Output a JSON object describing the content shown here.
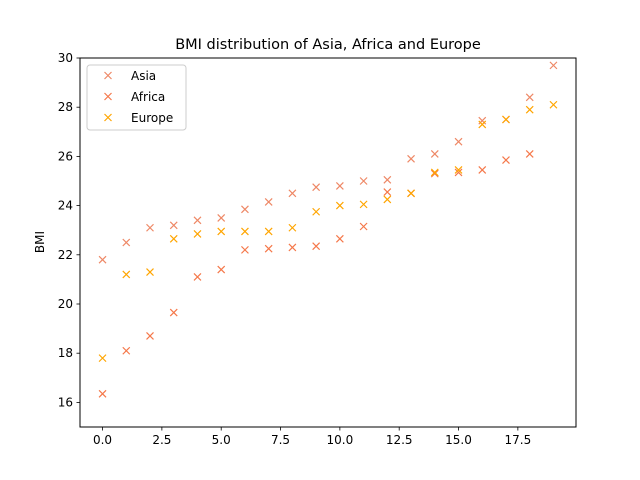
{
  "chart_data": {
    "type": "scatter",
    "title": "BMI distribution of Asia, Africa and Europe",
    "xlabel": "",
    "ylabel": "BMI",
    "xlim": [
      -0.95,
      19.95
    ],
    "ylim": [
      15,
      30
    ],
    "xticks": [
      0.0,
      2.5,
      5.0,
      7.5,
      10.0,
      12.5,
      15.0,
      17.5
    ],
    "xtick_labels": [
      "0.0",
      "2.5",
      "5.0",
      "7.5",
      "10.0",
      "12.5",
      "15.0",
      "17.5"
    ],
    "yticks": [
      16,
      18,
      20,
      22,
      24,
      26,
      28,
      30
    ],
    "ytick_labels": [
      "16",
      "18",
      "20",
      "22",
      "24",
      "26",
      "28",
      "30"
    ],
    "grid": false,
    "legend_position": "upper-left",
    "marker": "x",
    "series": [
      {
        "name": "Asia",
        "color": "#EE8866",
        "x": [
          0,
          1,
          2,
          3,
          4,
          5,
          6,
          7,
          8,
          9,
          10,
          11,
          12,
          13,
          14,
          15,
          16,
          17,
          18,
          19
        ],
        "y": [
          21.8,
          22.5,
          23.1,
          23.2,
          23.4,
          23.5,
          23.85,
          24.15,
          24.5,
          24.75,
          24.8,
          25.0,
          25.05,
          25.9,
          26.1,
          26.6,
          27.45,
          27.5,
          28.4,
          29.7
        ]
      },
      {
        "name": "Africa",
        "color": "#F5784A",
        "x": [
          0,
          1,
          2,
          3,
          4,
          5,
          6,
          7,
          8,
          9,
          10,
          11,
          12,
          13,
          14,
          15,
          16,
          17,
          18
        ],
        "y": [
          16.35,
          18.1,
          18.7,
          19.65,
          21.1,
          21.4,
          22.2,
          22.25,
          22.3,
          22.35,
          22.65,
          23.15,
          24.55,
          24.5,
          25.3,
          25.35,
          25.45,
          25.85,
          26.1
        ]
      },
      {
        "name": "Europe",
        "color": "#FFA500",
        "x": [
          0,
          1,
          2,
          3,
          4,
          5,
          6,
          7,
          8,
          9,
          10,
          11,
          12,
          13,
          14,
          15,
          16,
          17,
          18,
          19
        ],
        "y": [
          17.8,
          21.2,
          21.3,
          22.65,
          22.85,
          22.95,
          22.95,
          22.95,
          23.1,
          23.75,
          24.0,
          24.05,
          24.25,
          24.5,
          25.35,
          25.45,
          27.3,
          27.5,
          27.9,
          28.1
        ]
      }
    ]
  }
}
